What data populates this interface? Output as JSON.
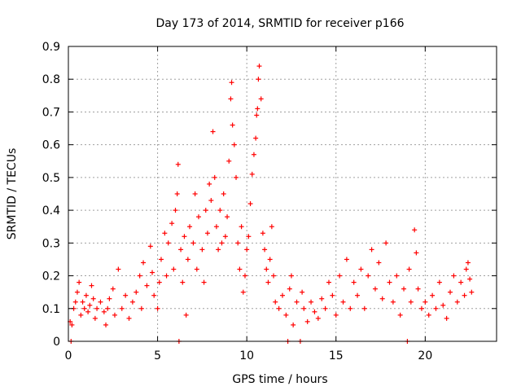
{
  "chart_data": {
    "type": "scatter",
    "title": "Day 173 of 2014, SRMTID for receiver p166",
    "xlabel": "GPS time / hours",
    "ylabel": "SRMTID / TECUs",
    "xlim": [
      0,
      24
    ],
    "ylim": [
      0,
      0.9
    ],
    "xticks": [
      0,
      5,
      10,
      15,
      20
    ],
    "yticks": [
      0,
      0.1,
      0.2,
      0.3,
      0.4,
      0.5,
      0.6,
      0.7,
      0.8,
      0.9
    ],
    "xtick_labels": [
      "0",
      "5",
      "10",
      "15",
      "20"
    ],
    "ytick_labels": [
      "0",
      "0.1",
      "0.2",
      "0.3",
      "0.4",
      "0.5",
      "0.6",
      "0.7",
      "0.8",
      "0.9"
    ],
    "grid": true,
    "marker": "plus",
    "series": [
      {
        "name": "SRMTID",
        "color": "#ff0000",
        "points": [
          [
            0.1,
            0.06
          ],
          [
            0.15,
            0.0
          ],
          [
            0.2,
            0.05
          ],
          [
            0.3,
            0.1
          ],
          [
            0.4,
            0.12
          ],
          [
            0.5,
            0.15
          ],
          [
            0.6,
            0.18
          ],
          [
            0.7,
            0.08
          ],
          [
            0.8,
            0.12
          ],
          [
            0.9,
            0.1
          ],
          [
            1.0,
            0.14
          ],
          [
            1.1,
            0.09
          ],
          [
            1.2,
            0.11
          ],
          [
            1.3,
            0.17
          ],
          [
            1.4,
            0.13
          ],
          [
            1.5,
            0.07
          ],
          [
            1.6,
            0.1
          ],
          [
            1.8,
            0.12
          ],
          [
            2.0,
            0.09
          ],
          [
            2.1,
            0.05
          ],
          [
            2.2,
            0.1
          ],
          [
            2.3,
            0.13
          ],
          [
            2.5,
            0.16
          ],
          [
            2.6,
            0.08
          ],
          [
            2.8,
            0.22
          ],
          [
            3.0,
            0.1
          ],
          [
            3.2,
            0.14
          ],
          [
            3.4,
            0.07
          ],
          [
            3.6,
            0.12
          ],
          [
            3.8,
            0.15
          ],
          [
            4.0,
            0.2
          ],
          [
            4.1,
            0.1
          ],
          [
            4.2,
            0.24
          ],
          [
            4.4,
            0.17
          ],
          [
            4.6,
            0.29
          ],
          [
            4.7,
            0.21
          ],
          [
            4.8,
            0.14
          ],
          [
            5.0,
            0.1
          ],
          [
            5.1,
            0.18
          ],
          [
            5.2,
            0.25
          ],
          [
            5.4,
            0.33
          ],
          [
            5.5,
            0.2
          ],
          [
            5.6,
            0.3
          ],
          [
            5.8,
            0.36
          ],
          [
            5.9,
            0.22
          ],
          [
            6.0,
            0.4
          ],
          [
            6.1,
            0.45
          ],
          [
            6.15,
            0.54
          ],
          [
            6.2,
            0.0
          ],
          [
            6.3,
            0.28
          ],
          [
            6.4,
            0.18
          ],
          [
            6.5,
            0.32
          ],
          [
            6.6,
            0.08
          ],
          [
            6.7,
            0.25
          ],
          [
            6.8,
            0.35
          ],
          [
            7.0,
            0.3
          ],
          [
            7.1,
            0.45
          ],
          [
            7.2,
            0.22
          ],
          [
            7.3,
            0.38
          ],
          [
            7.5,
            0.28
          ],
          [
            7.6,
            0.18
          ],
          [
            7.7,
            0.4
          ],
          [
            7.8,
            0.33
          ],
          [
            7.9,
            0.48
          ],
          [
            8.0,
            0.43
          ],
          [
            8.1,
            0.64
          ],
          [
            8.2,
            0.5
          ],
          [
            8.3,
            0.35
          ],
          [
            8.4,
            0.28
          ],
          [
            8.5,
            0.4
          ],
          [
            8.6,
            0.3
          ],
          [
            8.7,
            0.45
          ],
          [
            8.8,
            0.32
          ],
          [
            8.9,
            0.38
          ],
          [
            9.0,
            0.55
          ],
          [
            9.1,
            0.74
          ],
          [
            9.15,
            0.79
          ],
          [
            9.2,
            0.66
          ],
          [
            9.3,
            0.6
          ],
          [
            9.4,
            0.5
          ],
          [
            9.5,
            0.3
          ],
          [
            9.6,
            0.22
          ],
          [
            9.7,
            0.35
          ],
          [
            9.8,
            0.15
          ],
          [
            9.9,
            0.2
          ],
          [
            10.0,
            0.28
          ],
          [
            10.1,
            0.32
          ],
          [
            10.2,
            0.42
          ],
          [
            10.3,
            0.51
          ],
          [
            10.4,
            0.57
          ],
          [
            10.5,
            0.62
          ],
          [
            10.55,
            0.69
          ],
          [
            10.6,
            0.71
          ],
          [
            10.65,
            0.8
          ],
          [
            10.7,
            0.84
          ],
          [
            10.8,
            0.74
          ],
          [
            10.9,
            0.33
          ],
          [
            11.0,
            0.28
          ],
          [
            11.1,
            0.22
          ],
          [
            11.2,
            0.18
          ],
          [
            11.3,
            0.25
          ],
          [
            11.4,
            0.35
          ],
          [
            11.5,
            0.2
          ],
          [
            11.6,
            0.12
          ],
          [
            11.8,
            0.1
          ],
          [
            12.0,
            0.14
          ],
          [
            12.2,
            0.08
          ],
          [
            12.3,
            0.0
          ],
          [
            12.4,
            0.16
          ],
          [
            12.5,
            0.2
          ],
          [
            12.6,
            0.05
          ],
          [
            12.8,
            0.12
          ],
          [
            13.0,
            0.0
          ],
          [
            13.1,
            0.15
          ],
          [
            13.2,
            0.1
          ],
          [
            13.4,
            0.06
          ],
          [
            13.6,
            0.12
          ],
          [
            13.8,
            0.09
          ],
          [
            14.0,
            0.07
          ],
          [
            14.2,
            0.13
          ],
          [
            14.4,
            0.1
          ],
          [
            14.6,
            0.18
          ],
          [
            14.8,
            0.14
          ],
          [
            15.0,
            0.08
          ],
          [
            15.2,
            0.2
          ],
          [
            15.4,
            0.12
          ],
          [
            15.6,
            0.25
          ],
          [
            15.8,
            0.1
          ],
          [
            16.0,
            0.18
          ],
          [
            16.2,
            0.14
          ],
          [
            16.4,
            0.22
          ],
          [
            16.6,
            0.1
          ],
          [
            16.8,
            0.2
          ],
          [
            17.0,
            0.28
          ],
          [
            17.2,
            0.16
          ],
          [
            17.4,
            0.24
          ],
          [
            17.6,
            0.13
          ],
          [
            17.8,
            0.3
          ],
          [
            18.0,
            0.18
          ],
          [
            18.2,
            0.12
          ],
          [
            18.4,
            0.2
          ],
          [
            18.6,
            0.08
          ],
          [
            18.8,
            0.16
          ],
          [
            19.0,
            0.0
          ],
          [
            19.1,
            0.22
          ],
          [
            19.2,
            0.12
          ],
          [
            19.4,
            0.34
          ],
          [
            19.5,
            0.27
          ],
          [
            19.6,
            0.16
          ],
          [
            19.8,
            0.1
          ],
          [
            20.0,
            0.12
          ],
          [
            20.2,
            0.08
          ],
          [
            20.4,
            0.14
          ],
          [
            20.6,
            0.1
          ],
          [
            20.8,
            0.18
          ],
          [
            21.0,
            0.11
          ],
          [
            21.2,
            0.07
          ],
          [
            21.4,
            0.15
          ],
          [
            21.6,
            0.2
          ],
          [
            21.8,
            0.12
          ],
          [
            22.0,
            0.18
          ],
          [
            22.2,
            0.14
          ],
          [
            22.3,
            0.22
          ],
          [
            22.4,
            0.24
          ],
          [
            22.5,
            0.19
          ],
          [
            22.6,
            0.15
          ]
        ]
      }
    ]
  }
}
